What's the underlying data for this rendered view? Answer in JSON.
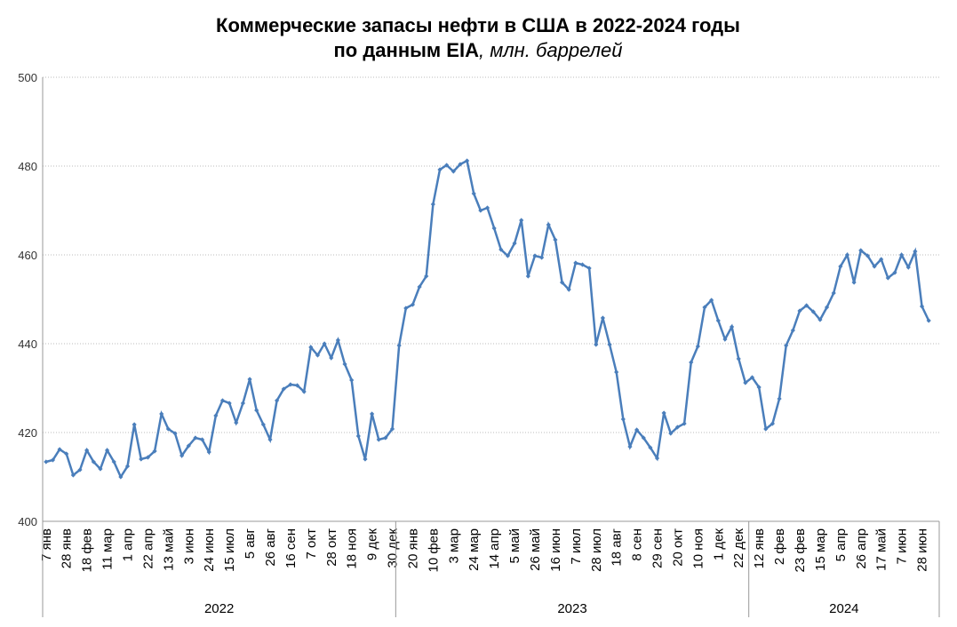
{
  "chart_data": {
    "type": "line",
    "title": "Коммерческие запасы нефти в США в 2022-2024 годы",
    "subtitle": "по данным EIA",
    "unit": ", млн. баррелей",
    "categories": [
      "7 янв",
      null,
      null,
      "28 янв",
      null,
      null,
      "18 фев",
      null,
      null,
      "11 мар",
      null,
      null,
      "1 апр",
      null,
      null,
      "22 апр",
      null,
      null,
      "13 май",
      null,
      null,
      "3 июн",
      null,
      null,
      "24 июн",
      null,
      null,
      "15 июл",
      null,
      null,
      "5 авг",
      null,
      null,
      "26 авг",
      null,
      null,
      "16 сен",
      null,
      null,
      "7 окт",
      null,
      null,
      "28 окт",
      null,
      null,
      "18 ноя",
      null,
      null,
      "9 дек",
      null,
      null,
      "30 дек",
      null,
      null,
      "20 янв",
      null,
      null,
      "10 фев",
      null,
      null,
      "3 мар",
      null,
      null,
      "24 мар",
      null,
      null,
      "14 апр",
      null,
      null,
      "5 май",
      null,
      null,
      "26 май",
      null,
      null,
      "16 июн",
      null,
      null,
      "7 июл",
      null,
      null,
      "28 июл",
      null,
      null,
      "18 авг",
      null,
      null,
      "8 сен",
      null,
      null,
      "29 сен",
      null,
      null,
      "20 окт",
      null,
      null,
      "10 ноя",
      null,
      null,
      "1 дек",
      null,
      null,
      "22 дек",
      null,
      null,
      "12 янв",
      null,
      null,
      "2 фев",
      null,
      null,
      "23 фев",
      null,
      null,
      "15 мар",
      null,
      null,
      "5 апр",
      null,
      null,
      "26 апр",
      null,
      null,
      "17 май",
      null,
      null,
      "7 июн",
      null,
      null,
      "28 июн",
      null
    ],
    "groups": [
      {
        "label": "2022",
        "size": 52
      },
      {
        "label": "2023",
        "size": 52
      },
      {
        "label": "2024",
        "size": 27
      }
    ],
    "series": [
      {
        "name": "Коммерческие запасы нефти",
        "color": "#4a7ebb",
        "values": [
          413.4,
          413.8,
          416.2,
          415.2,
          410.4,
          411.6,
          416.0,
          413.4,
          411.8,
          416.0,
          413.4,
          410.0,
          412.4,
          421.8,
          414.0,
          414.4,
          415.8,
          424.2,
          420.8,
          419.8,
          414.8,
          417.0,
          418.8,
          418.4,
          415.6,
          423.8,
          427.2,
          426.6,
          422.2,
          426.6,
          432.0,
          425.0,
          421.8,
          418.4,
          427.2,
          429.8,
          430.8,
          430.6,
          429.2,
          439.2,
          437.4,
          440.0,
          436.8,
          440.8,
          435.4,
          431.8,
          419.2,
          414.0,
          424.2,
          418.4,
          418.8,
          420.8,
          439.6,
          448.0,
          448.8,
          452.8,
          455.2,
          471.4,
          479.2,
          480.2,
          478.8,
          480.4,
          481.2,
          473.8,
          470.0,
          470.6,
          466.0,
          461.2,
          459.8,
          462.6,
          467.8,
          455.2,
          459.8,
          459.4,
          466.8,
          463.4,
          453.8,
          452.2,
          458.2,
          457.8,
          457.0,
          439.8,
          445.8,
          439.8,
          433.6,
          423.0,
          416.8,
          420.6,
          418.8,
          416.6,
          414.2,
          424.4,
          419.8,
          421.2,
          422.0,
          435.8,
          439.4,
          448.2,
          449.8,
          445.2,
          441.0,
          443.8,
          436.6,
          431.2,
          432.4,
          430.2,
          420.8,
          422.0,
          427.6,
          439.6,
          443.0,
          447.4,
          448.6,
          447.2,
          445.4,
          448.2,
          451.4,
          457.4,
          460.0,
          453.8,
          461.0,
          459.8,
          457.4,
          459.0,
          454.8,
          456.0,
          460.0,
          457.2,
          460.8,
          448.4,
          445.2
        ]
      }
    ],
    "ylim": [
      400,
      500
    ],
    "yticks": [
      400,
      420,
      440,
      460,
      480,
      500
    ],
    "grid": true
  }
}
